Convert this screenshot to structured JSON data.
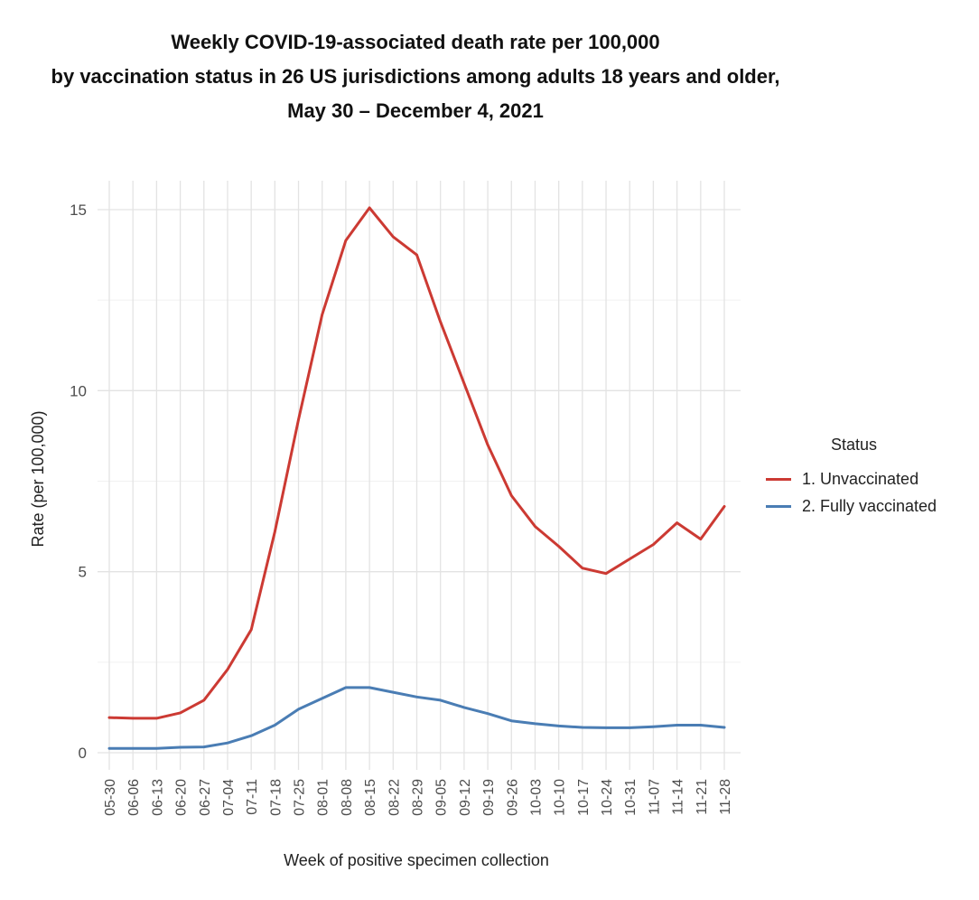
{
  "chart_data": {
    "type": "line",
    "title_lines": [
      "Weekly COVID-19-associated death rate per 100,000",
      "by vaccination status in 26 US jurisdictions among adults 18 years and older,",
      "May 30 – December 4, 2021"
    ],
    "xlabel": "Week of positive specimen collection",
    "ylabel": "Rate (per 100,000)",
    "ylim": [
      0,
      15
    ],
    "yticks": [
      0,
      5,
      10,
      15
    ],
    "grid": true,
    "categories": [
      "05-30",
      "06-06",
      "06-13",
      "06-20",
      "06-27",
      "07-04",
      "07-11",
      "07-18",
      "07-25",
      "08-01",
      "08-08",
      "08-15",
      "08-22",
      "08-29",
      "09-05",
      "09-12",
      "09-19",
      "09-26",
      "10-03",
      "10-10",
      "10-17",
      "10-24",
      "10-31",
      "11-07",
      "11-14",
      "11-21",
      "11-28"
    ],
    "legend": {
      "title": "Status",
      "position": "right"
    },
    "series": [
      {
        "name": "1. Unvaccinated",
        "color": "#cc3a33",
        "values": [
          0.97,
          0.95,
          0.95,
          1.1,
          1.45,
          2.3,
          3.4,
          6.1,
          9.2,
          12.1,
          14.15,
          15.05,
          14.25,
          13.75,
          11.9,
          10.2,
          8.5,
          7.1,
          6.25,
          5.7,
          5.1,
          4.95,
          5.35,
          5.75,
          6.35,
          5.9,
          6.8
        ]
      },
      {
        "name": "2. Fully vaccinated",
        "color": "#4a7db4",
        "values": [
          0.12,
          0.12,
          0.12,
          0.15,
          0.16,
          0.27,
          0.47,
          0.76,
          1.2,
          1.5,
          1.8,
          1.8,
          1.67,
          1.54,
          1.45,
          1.25,
          1.08,
          0.88,
          0.8,
          0.74,
          0.7,
          0.69,
          0.69,
          0.72,
          0.76,
          0.76,
          0.7
        ]
      }
    ]
  }
}
